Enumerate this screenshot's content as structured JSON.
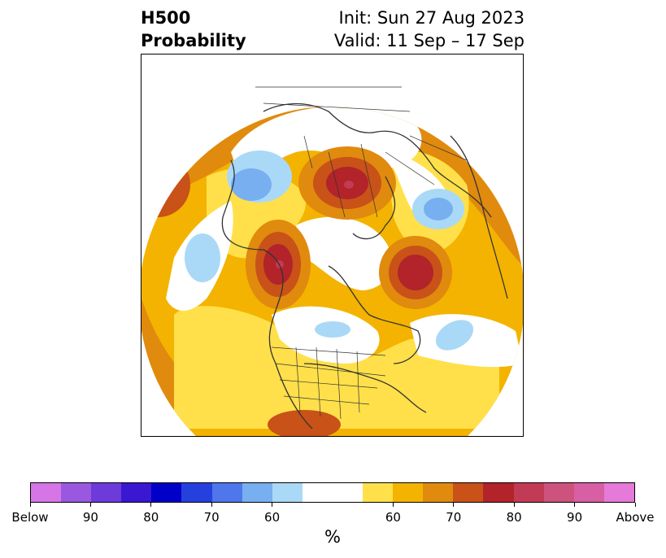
{
  "title": {
    "left_line1": "H500",
    "left_line2": "Probability",
    "right_line1": "Init: Sun 27 Aug 2023",
    "right_line2": "Valid: 11 Sep – 17 Sep"
  },
  "colorbar": {
    "unit": "%",
    "colors": [
      "#d676e6",
      "#9a58e0",
      "#6c3bd9",
      "#3a17d0",
      "#0000c8",
      "#2640de",
      "#4f76ea",
      "#77aff1",
      "#aad9f7",
      "#ffffff",
      "#ffe04a",
      "#f3b300",
      "#e08a0e",
      "#c85218",
      "#b2232a",
      "#c23b55",
      "#cd527e",
      "#d85fa4",
      "#e67ad8"
    ],
    "tick_labels": [
      "Below",
      "90",
      "80",
      "70",
      "60",
      "60",
      "70",
      "80",
      "90",
      "Above"
    ]
  },
  "map": {
    "projection": "north-polar-stereographic",
    "field": "500-hPa height probability"
  }
}
